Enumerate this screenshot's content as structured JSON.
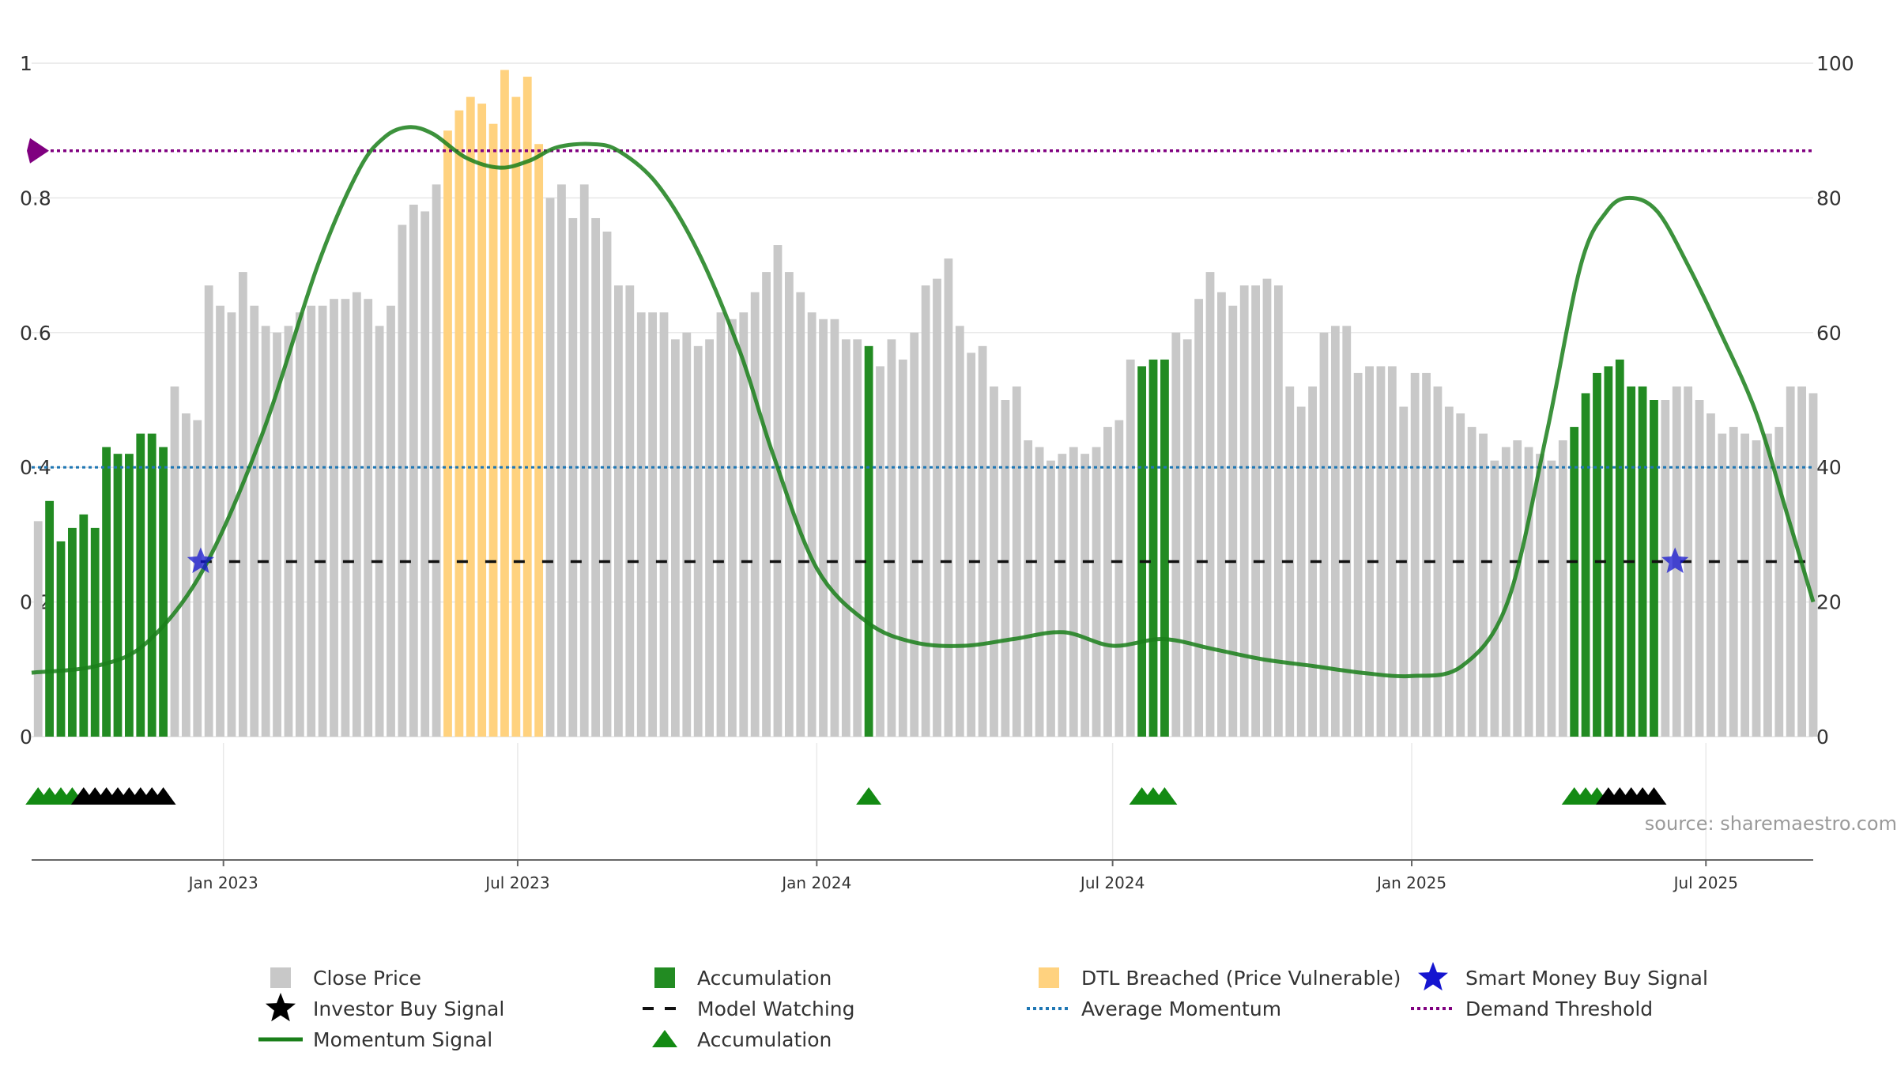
{
  "chart_data": {
    "type": "bar",
    "title": "",
    "colors": {
      "close": "#c8c8c8",
      "accumulation": "#228b22",
      "dtl": "#ffd27f",
      "momentum": "#1a7f1a",
      "average_momentum": "#1f77b4",
      "model_watching": "#111111",
      "demand_threshold": "#800080",
      "smart_money": "#1515d0",
      "investor_marker": "#000000",
      "accumulation_marker": "#138a13",
      "grid": "#e9e9e9"
    },
    "left_axis": {
      "ticks": [
        "0",
        "0.2",
        "0.4",
        "0.6",
        "0.8",
        "1"
      ],
      "ylim": [
        0,
        1
      ]
    },
    "right_axis": {
      "ticks": [
        "0",
        "20",
        "40",
        "60",
        "80",
        "100"
      ],
      "ylim": [
        0,
        100
      ]
    },
    "x_ticks": [
      {
        "label": "Jan 2023",
        "date": "2023-01-01"
      },
      {
        "label": "Jul 2023",
        "date": "2023-07-01"
      },
      {
        "label": "Jan 2024",
        "date": "2024-01-01"
      },
      {
        "label": "Jul 2024",
        "date": "2024-07-01"
      },
      {
        "label": "Jan 2025",
        "date": "2025-01-01"
      },
      {
        "label": "Jul 2025",
        "date": "2025-07-01"
      }
    ],
    "x_range": [
      "2022-09-05",
      "2025-09-05"
    ],
    "bars": {
      "start_date": "2022-09-09",
      "interval_days": 7,
      "values": [
        0.32,
        0.35,
        0.29,
        0.31,
        0.33,
        0.31,
        0.43,
        0.42,
        0.42,
        0.45,
        0.45,
        0.43,
        0.52,
        0.48,
        0.47,
        0.67,
        0.64,
        0.63,
        0.69,
        0.64,
        0.61,
        0.6,
        0.61,
        0.63,
        0.64,
        0.64,
        0.65,
        0.65,
        0.66,
        0.65,
        0.61,
        0.64,
        0.76,
        0.79,
        0.78,
        0.82,
        0.9,
        0.93,
        0.95,
        0.94,
        0.91,
        0.99,
        0.95,
        0.98,
        0.88,
        0.8,
        0.82,
        0.77,
        0.82,
        0.77,
        0.75,
        0.67,
        0.67,
        0.63,
        0.63,
        0.63,
        0.59,
        0.6,
        0.58,
        0.59,
        0.63,
        0.62,
        0.63,
        0.66,
        0.69,
        0.73,
        0.69,
        0.66,
        0.63,
        0.62,
        0.62,
        0.59,
        0.59,
        0.58,
        0.55,
        0.59,
        0.56,
        0.6,
        0.67,
        0.68,
        0.71,
        0.61,
        0.57,
        0.58,
        0.52,
        0.5,
        0.52,
        0.44,
        0.43,
        0.41,
        0.42,
        0.43,
        0.42,
        0.43,
        0.46,
        0.47,
        0.56,
        0.55,
        0.56,
        0.56,
        0.6,
        0.59,
        0.65,
        0.69,
        0.66,
        0.64,
        0.67,
        0.67,
        0.68,
        0.67,
        0.52,
        0.49,
        0.52,
        0.6,
        0.61,
        0.61,
        0.54,
        0.55,
        0.55,
        0.55,
        0.49,
        0.54,
        0.54,
        0.52,
        0.49,
        0.48,
        0.46,
        0.45,
        0.41,
        0.43,
        0.44,
        0.43,
        0.42,
        0.41,
        0.44,
        0.46,
        0.51,
        0.54,
        0.55,
        0.56,
        0.52,
        0.52,
        0.5,
        0.5,
        0.52,
        0.52,
        0.5,
        0.48,
        0.45,
        0.46,
        0.45,
        0.44,
        0.45,
        0.46,
        0.52,
        0.52,
        0.51
      ],
      "kind_ranges": [
        {
          "kind": "accumulation",
          "from": 1,
          "to": 11
        },
        {
          "kind": "dtl",
          "from": 36,
          "to": 44
        },
        {
          "kind": "accumulation",
          "from": 73,
          "to": 73
        },
        {
          "kind": "accumulation",
          "from": 97,
          "to": 99
        },
        {
          "kind": "accumulation",
          "from": 135,
          "to": 142
        }
      ]
    },
    "series": [
      {
        "name": "Momentum Signal",
        "axis": "right",
        "points": [
          [
            "2022-09-05",
            9.5
          ],
          [
            "2022-10-15",
            10.5
          ],
          [
            "2022-11-15",
            14
          ],
          [
            "2022-12-20",
            25
          ],
          [
            "2023-01-25",
            45
          ],
          [
            "2023-02-28",
            70
          ],
          [
            "2023-03-25",
            84
          ],
          [
            "2023-04-10",
            89
          ],
          [
            "2023-04-25",
            90.5
          ],
          [
            "2023-05-10",
            89.5
          ],
          [
            "2023-05-30",
            86
          ],
          [
            "2023-06-20",
            84.5
          ],
          [
            "2023-07-08",
            85.5
          ],
          [
            "2023-07-25",
            87.5
          ],
          [
            "2023-08-15",
            88
          ],
          [
            "2023-09-01",
            87
          ],
          [
            "2023-09-25",
            82
          ],
          [
            "2023-10-20",
            72
          ],
          [
            "2023-11-15",
            57
          ],
          [
            "2023-12-05",
            42
          ],
          [
            "2024-01-01",
            25
          ],
          [
            "2024-02-01",
            17
          ],
          [
            "2024-03-01",
            14
          ],
          [
            "2024-04-01",
            13.5
          ],
          [
            "2024-05-01",
            14.5
          ],
          [
            "2024-06-01",
            15.5
          ],
          [
            "2024-07-01",
            13.5
          ],
          [
            "2024-08-01",
            14.5
          ],
          [
            "2024-09-01",
            13
          ],
          [
            "2024-10-01",
            11.5
          ],
          [
            "2024-11-01",
            10.5
          ],
          [
            "2024-12-01",
            9.5
          ],
          [
            "2025-01-01",
            9
          ],
          [
            "2025-02-01",
            10.5
          ],
          [
            "2025-03-01",
            20
          ],
          [
            "2025-03-25",
            45
          ],
          [
            "2025-04-15",
            70
          ],
          [
            "2025-05-01",
            78
          ],
          [
            "2025-05-15",
            80
          ],
          [
            "2025-06-01",
            78
          ],
          [
            "2025-06-20",
            70
          ],
          [
            "2025-07-10",
            60
          ],
          [
            "2025-08-01",
            48
          ],
          [
            "2025-08-20",
            33
          ],
          [
            "2025-09-05",
            20
          ]
        ]
      },
      {
        "name": "Average Momentum",
        "value": 40,
        "axis": "right"
      },
      {
        "name": "Demand Threshold",
        "value": 87,
        "axis": "right"
      },
      {
        "name": "Model Watching",
        "value": 0.26,
        "axis": "left",
        "from": "2022-12-18",
        "to": "2025-09-05"
      }
    ],
    "smart_money_signals": [
      {
        "date": "2022-12-18",
        "y": 0.26
      },
      {
        "date": "2025-06-12",
        "y": 0.26
      }
    ],
    "marker_rows": [
      {
        "kind": "accumulation",
        "from_bar": 0,
        "to_bar": 3
      },
      {
        "kind": "investor",
        "from_bar": 4,
        "to_bar": 11
      },
      {
        "kind": "accumulation",
        "from_bar": 73,
        "to_bar": 73
      },
      {
        "kind": "accumulation",
        "from_bar": 97,
        "to_bar": 99
      },
      {
        "kind": "accumulation",
        "from_bar": 135,
        "to_bar": 137
      },
      {
        "kind": "investor",
        "from_bar": 138,
        "to_bar": 142
      }
    ],
    "legend": [
      {
        "key": "close",
        "label": "Close Price",
        "symbol": "square"
      },
      {
        "key": "accumulation",
        "label": "Accumulation",
        "symbol": "square"
      },
      {
        "key": "dtl",
        "label": "DTL Breached (Price Vulnerable)",
        "symbol": "square"
      },
      {
        "key": "smart_money",
        "label": "Smart Money Buy Signal",
        "symbol": "star"
      },
      {
        "key": "investor_marker",
        "label": "Investor Buy Signal",
        "symbol": "star"
      },
      {
        "key": "model_watching",
        "label": "Model Watching",
        "symbol": "dash"
      },
      {
        "key": "average_momentum",
        "label": "Average Momentum",
        "symbol": "dot"
      },
      {
        "key": "demand_threshold",
        "label": "Demand Threshold",
        "symbol": "dot"
      },
      {
        "key": "momentum",
        "label": "Momentum Signal",
        "symbol": "line"
      },
      {
        "key": "accumulation_marker",
        "label": "Accumulation",
        "symbol": "triangle"
      }
    ],
    "source": "source: sharemaestro.com"
  }
}
